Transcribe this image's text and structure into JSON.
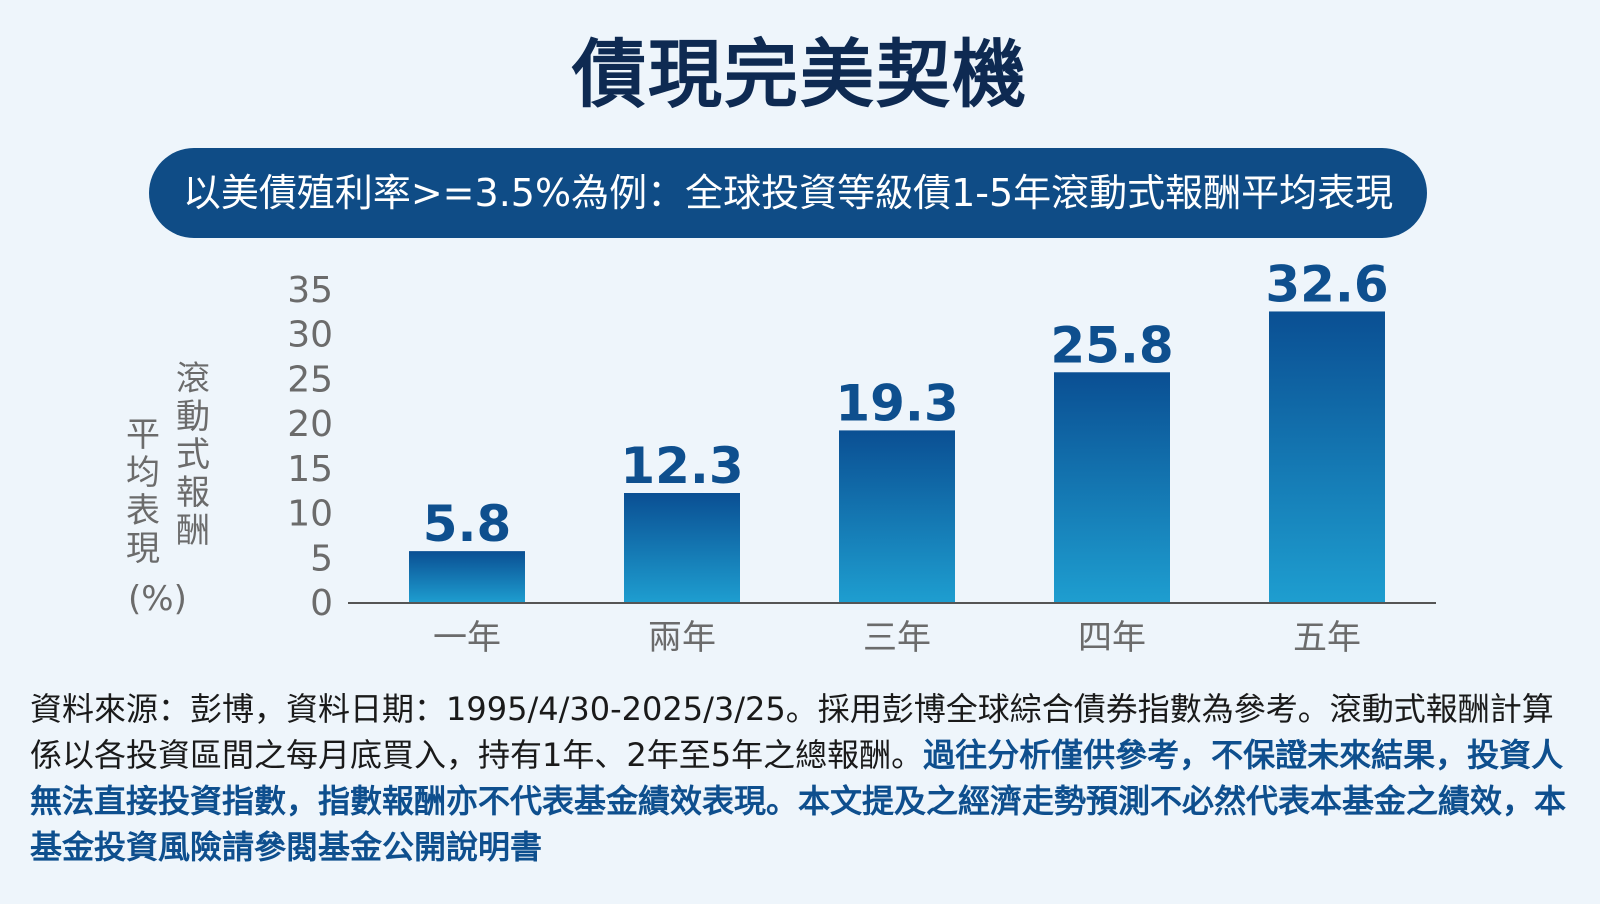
{
  "header": {
    "title": "債現完美契機",
    "subtitle": "以美債殖利率>=3.5%為例：全球投資等級債1-5年滾動式報酬平均表現"
  },
  "colors": {
    "title": "#0e2a52",
    "pill": "#0f4c86",
    "bar_top": "#0a4f93",
    "bar_bottom": "#1e9ed0",
    "value_label": "#0e4f8e",
    "axis_text": "#6b6b6b"
  },
  "chart_data": {
    "type": "bar",
    "title": "",
    "ylabel_col1": "平均表現",
    "ylabel_col2": "滾動式報酬",
    "ylabel_unit": "(%)",
    "categories": [
      "一年",
      "兩年",
      "三年",
      "四年",
      "五年"
    ],
    "values": [
      5.8,
      12.3,
      19.3,
      25.8,
      32.6
    ],
    "value_labels": [
      "5.8",
      "12.3",
      "19.3",
      "25.8",
      "32.6"
    ],
    "yticks": [
      0,
      5,
      10,
      15,
      20,
      25,
      30,
      35
    ],
    "ylim": [
      0,
      35
    ],
    "grid": false,
    "legend": "none"
  },
  "footnote": {
    "plain": "資料來源：彭博，資料日期：1995/4/30-2025/3/25。採用彭博全球綜合債券指數為參考。滾動式報酬計算係以各投資區間之每月底買入，持有1年、2年至5年之總報酬。",
    "highlight": "過往分析僅供參考，不保證未來結果，投資人無法直接投資指數，指數報酬亦不代表基金績效表現。本文提及之經濟走勢預測不必然代表本基金之績效，本基金投資風險請參閱基金公開說明書"
  }
}
